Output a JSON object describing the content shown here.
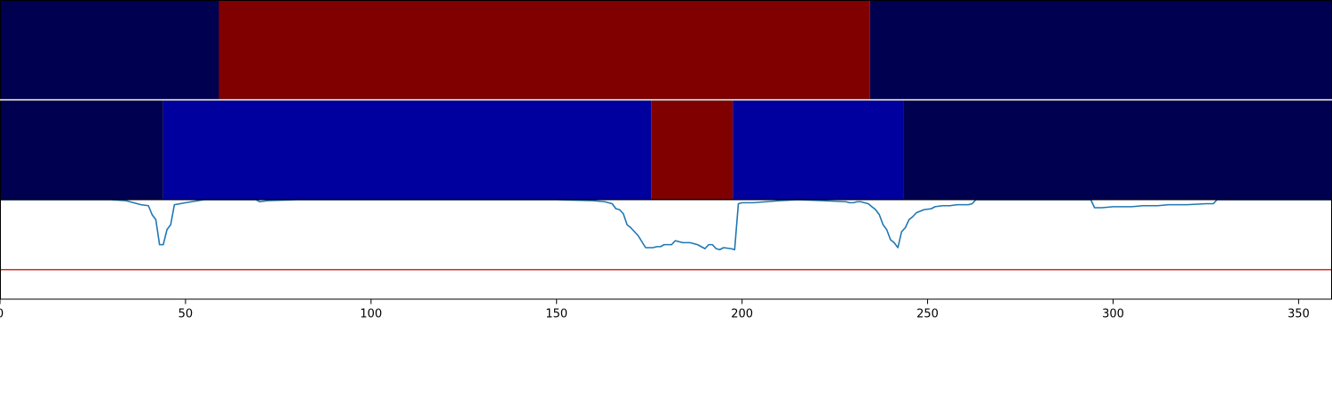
{
  "chart_data": {
    "type": "line",
    "title": "",
    "xlabel": "",
    "ylabel": "",
    "xlim": [
      0,
      359
    ],
    "ylim": [
      0,
      1
    ],
    "grid": false,
    "x_ticks": [
      0,
      50,
      100,
      150,
      200,
      250,
      300,
      350
    ],
    "segment_tracks": [
      {
        "segments": [
          {
            "start": 0,
            "end": 59,
            "color": "#000050"
          },
          {
            "start": 59,
            "end": 234.5,
            "color": "#800000"
          },
          {
            "start": 234.5,
            "end": 359,
            "color": "#000050"
          }
        ]
      },
      {
        "segments": [
          {
            "start": 0,
            "end": 44,
            "color": "#000050"
          },
          {
            "start": 44,
            "end": 175.5,
            "color": "#00009f"
          },
          {
            "start": 175.5,
            "end": 197.5,
            "color": "#800000"
          },
          {
            "start": 197.5,
            "end": 243.5,
            "color": "#00009f"
          },
          {
            "start": 243.5,
            "end": 359,
            "color": "#000050"
          }
        ]
      }
    ],
    "series": [
      {
        "color": "#1f77b4",
        "points": [
          [
            0,
            1.0
          ],
          [
            30,
            1.0
          ],
          [
            34,
            0.99
          ],
          [
            36,
            0.97
          ],
          [
            38,
            0.95
          ],
          [
            40,
            0.94
          ],
          [
            41,
            0.85
          ],
          [
            42,
            0.8
          ],
          [
            43,
            0.55
          ],
          [
            44,
            0.55
          ],
          [
            45,
            0.7
          ],
          [
            46,
            0.75
          ],
          [
            47,
            0.95
          ],
          [
            50,
            0.97
          ],
          [
            55,
            1.0
          ],
          [
            69,
            1.0
          ],
          [
            70,
            0.98
          ],
          [
            72,
            0.99
          ],
          [
            80,
            1.0
          ],
          [
            150,
            1.0
          ],
          [
            160,
            0.99
          ],
          [
            163,
            0.98
          ],
          [
            164,
            0.97
          ],
          [
            165,
            0.96
          ],
          [
            166,
            0.91
          ],
          [
            167,
            0.9
          ],
          [
            168,
            0.86
          ],
          [
            169,
            0.75
          ],
          [
            170,
            0.72
          ],
          [
            171,
            0.68
          ],
          [
            172,
            0.64
          ],
          [
            173,
            0.58
          ],
          [
            174,
            0.52
          ],
          [
            175,
            0.52
          ],
          [
            176,
            0.52
          ],
          [
            177,
            0.53
          ],
          [
            178,
            0.53
          ],
          [
            179,
            0.55
          ],
          [
            181,
            0.55
          ],
          [
            182,
            0.59
          ],
          [
            184,
            0.57
          ],
          [
            186,
            0.57
          ],
          [
            188,
            0.55
          ],
          [
            189,
            0.53
          ],
          [
            190,
            0.51
          ],
          [
            191,
            0.55
          ],
          [
            192,
            0.55
          ],
          [
            193,
            0.51
          ],
          [
            194,
            0.5
          ],
          [
            195,
            0.52
          ],
          [
            197,
            0.51
          ],
          [
            198,
            0.5
          ],
          [
            199,
            0.96
          ],
          [
            200,
            0.97
          ],
          [
            203,
            0.97
          ],
          [
            210,
            0.99
          ],
          [
            215,
            1.0
          ],
          [
            222,
            0.99
          ],
          [
            228,
            0.98
          ],
          [
            229,
            0.97
          ],
          [
            230,
            0.97
          ],
          [
            231,
            0.98
          ],
          [
            232,
            0.98
          ],
          [
            234,
            0.96
          ],
          [
            236,
            0.9
          ],
          [
            237,
            0.85
          ],
          [
            238,
            0.75
          ],
          [
            239,
            0.7
          ],
          [
            240,
            0.6
          ],
          [
            241,
            0.57
          ],
          [
            242,
            0.52
          ],
          [
            243,
            0.68
          ],
          [
            244,
            0.72
          ],
          [
            245,
            0.8
          ],
          [
            246,
            0.83
          ],
          [
            247,
            0.87
          ],
          [
            249,
            0.9
          ],
          [
            251,
            0.91
          ],
          [
            252,
            0.93
          ],
          [
            254,
            0.94
          ],
          [
            256,
            0.94
          ],
          [
            258,
            0.95
          ],
          [
            261,
            0.95
          ],
          [
            262,
            0.96
          ],
          [
            263,
            1.0
          ],
          [
            270,
            1.0
          ],
          [
            283,
            1.0
          ],
          [
            290,
            1.0
          ],
          [
            294,
            1.0
          ],
          [
            295,
            0.92
          ],
          [
            297,
            0.92
          ],
          [
            300,
            0.93
          ],
          [
            305,
            0.93
          ],
          [
            308,
            0.94
          ],
          [
            312,
            0.94
          ],
          [
            315,
            0.95
          ],
          [
            320,
            0.95
          ],
          [
            325,
            0.96
          ],
          [
            327,
            0.96
          ],
          [
            328,
            1.0
          ],
          [
            350,
            1.0
          ],
          [
            359,
            1.0
          ]
        ]
      },
      {
        "color": "#d62728",
        "points": [
          [
            0,
            0.3
          ],
          [
            359,
            0.3
          ]
        ]
      }
    ]
  }
}
